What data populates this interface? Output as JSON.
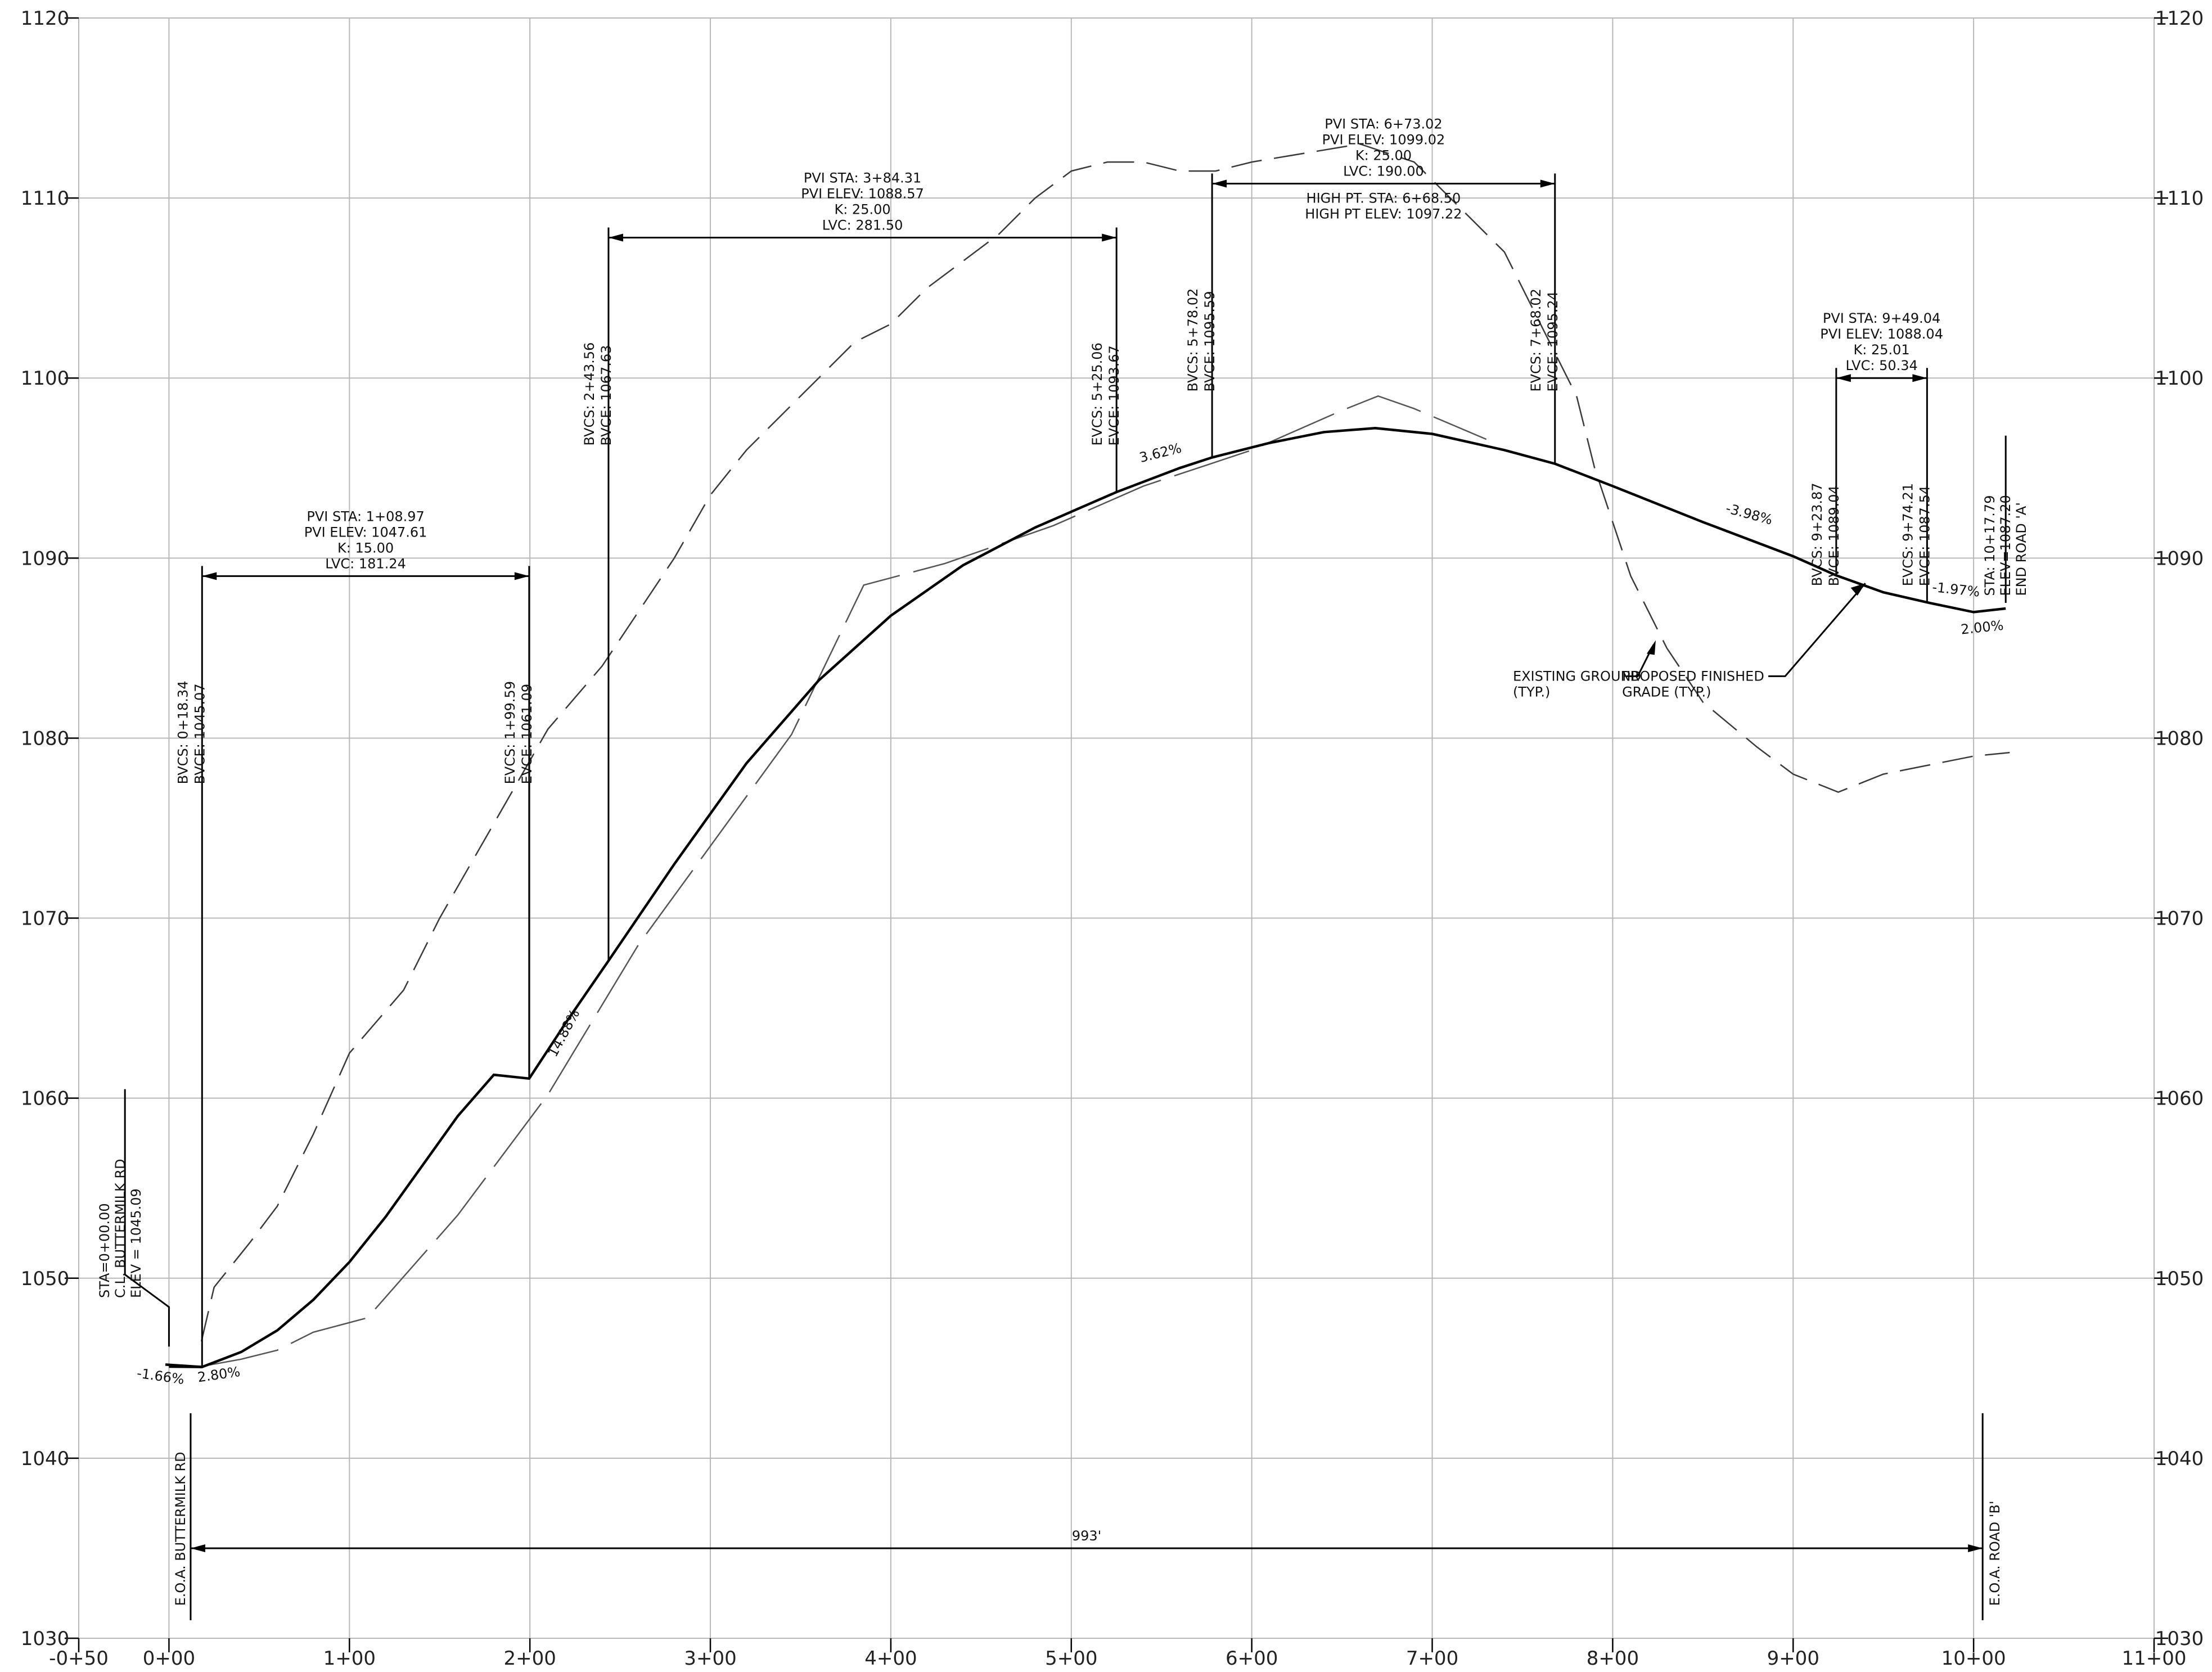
{
  "chart_data": {
    "type": "line",
    "xlim": [
      -50,
      1100
    ],
    "ylim": [
      1030,
      1120
    ],
    "y_ticks": [
      1030,
      1040,
      1050,
      1060,
      1070,
      1080,
      1090,
      1100,
      1110,
      1120
    ],
    "x_ticks": [
      {
        "sta": -50,
        "label": "-0+50"
      },
      {
        "sta": 0,
        "label": "0+00"
      },
      {
        "sta": 100,
        "label": "1+00"
      },
      {
        "sta": 200,
        "label": "2+00"
      },
      {
        "sta": 300,
        "label": "3+00"
      },
      {
        "sta": 400,
        "label": "4+00"
      },
      {
        "sta": 500,
        "label": "5+00"
      },
      {
        "sta": 600,
        "label": "6+00"
      },
      {
        "sta": 700,
        "label": "7+00"
      },
      {
        "sta": 800,
        "label": "8+00"
      },
      {
        "sta": 900,
        "label": "9+00"
      },
      {
        "sta": 1000,
        "label": "10+00"
      },
      {
        "sta": 1100,
        "label": "11+00"
      }
    ],
    "proposed_grade": [
      [
        0,
        1045.09
      ],
      [
        18.34,
        1045.07
      ],
      [
        40,
        1045.9
      ],
      [
        60,
        1047.1
      ],
      [
        80,
        1048.8
      ],
      [
        100,
        1050.9
      ],
      [
        120,
        1053.4
      ],
      [
        140,
        1056.2
      ],
      [
        160,
        1059.0
      ],
      [
        180,
        1061.3
      ],
      [
        199.59,
        1061.09
      ],
      [
        220,
        1064.2
      ],
      [
        243.56,
        1067.63
      ],
      [
        280,
        1073.0
      ],
      [
        320,
        1078.6
      ],
      [
        360,
        1083.2
      ],
      [
        400,
        1086.8
      ],
      [
        440,
        1089.6
      ],
      [
        480,
        1091.7
      ],
      [
        525.06,
        1093.67
      ],
      [
        560,
        1095.0
      ],
      [
        578.02,
        1095.59
      ],
      [
        610,
        1096.4
      ],
      [
        640,
        1097.0
      ],
      [
        668.5,
        1097.22
      ],
      [
        700,
        1096.9
      ],
      [
        740,
        1096.0
      ],
      [
        768.02,
        1095.24
      ],
      [
        800,
        1094.0
      ],
      [
        850,
        1092.0
      ],
      [
        900,
        1090.1
      ],
      [
        923.87,
        1089.04
      ],
      [
        950,
        1088.1
      ],
      [
        974.21,
        1087.54
      ],
      [
        1000,
        1087.0
      ],
      [
        1017.79,
        1087.2
      ]
    ],
    "existing_ground": [
      [
        18,
        1046.5
      ],
      [
        25,
        1049.5
      ],
      [
        45,
        1052.0
      ],
      [
        60,
        1054.0
      ],
      [
        80,
        1058.0
      ],
      [
        100,
        1062.5
      ],
      [
        130,
        1066.0
      ],
      [
        150,
        1070.0
      ],
      [
        170,
        1073.5
      ],
      [
        190,
        1077.0
      ],
      [
        210,
        1080.5
      ],
      [
        240,
        1084.0
      ],
      [
        260,
        1087.0
      ],
      [
        280,
        1090.0
      ],
      [
        300,
        1093.5
      ],
      [
        320,
        1096.0
      ],
      [
        340,
        1098.0
      ],
      [
        360,
        1100.0
      ],
      [
        380,
        1102.0
      ],
      [
        400,
        1103.0
      ],
      [
        420,
        1105.0
      ],
      [
        440,
        1106.5
      ],
      [
        460,
        1108.0
      ],
      [
        480,
        1110.0
      ],
      [
        500,
        1111.5
      ],
      [
        520,
        1112.0
      ],
      [
        540,
        1112.0
      ],
      [
        560,
        1111.5
      ],
      [
        580,
        1111.5
      ],
      [
        600,
        1112.0
      ],
      [
        630,
        1112.5
      ],
      [
        660,
        1113.0
      ],
      [
        690,
        1112.0
      ],
      [
        710,
        1110.0
      ],
      [
        740,
        1107.0
      ],
      [
        760,
        1103.0
      ],
      [
        780,
        1099.0
      ],
      [
        790,
        1095.0
      ],
      [
        800,
        1092.0
      ],
      [
        810,
        1089.0
      ],
      [
        830,
        1085.0
      ],
      [
        850,
        1082.0
      ],
      [
        880,
        1079.5
      ],
      [
        900,
        1078.0
      ],
      [
        925,
        1077.0
      ],
      [
        950,
        1078.0
      ],
      [
        975,
        1078.5
      ],
      [
        1000,
        1079.0
      ],
      [
        1020,
        1079.2
      ]
    ],
    "secondary_ground": [
      [
        18,
        1045.1
      ],
      [
        40,
        1045.5
      ],
      [
        60,
        1046.0
      ],
      [
        80,
        1047.0
      ],
      [
        110,
        1047.8
      ],
      [
        160,
        1053.5
      ],
      [
        210,
        1060.2
      ],
      [
        260,
        1068.5
      ],
      [
        300,
        1074.0
      ],
      [
        345,
        1080.2
      ],
      [
        385,
        1088.5
      ],
      [
        430,
        1089.7
      ],
      [
        490,
        1091.8
      ],
      [
        540,
        1094.0
      ],
      [
        600,
        1096.0
      ],
      [
        650,
        1098.2
      ],
      [
        670,
        1099.0
      ],
      [
        690,
        1098.3
      ],
      [
        730,
        1096.6
      ]
    ],
    "grade_labels": [
      {
        "text": "-1.66%",
        "sta": -5,
        "elev": 1044.3,
        "rot": 8
      },
      {
        "text": "2.80%",
        "sta": 28,
        "elev": 1044.4,
        "rot": -8
      },
      {
        "text": "14.88%",
        "sta": 221,
        "elev": 1063.5,
        "rot": -62
      },
      {
        "text": "3.62%",
        "sta": 550,
        "elev": 1095.6,
        "rot": -14
      },
      {
        "text": "-3.98%",
        "sta": 875,
        "elev": 1092.2,
        "rot": 15
      },
      {
        "text": "-1.97%",
        "sta": 990,
        "elev": 1088.0,
        "rot": 6
      },
      {
        "text": "2.00%",
        "sta": 1005,
        "elev": 1085.9,
        "rot": -6
      }
    ],
    "curves": [
      {
        "bvc_sta": 18.34,
        "evc_sta": 199.59,
        "dim_elev": 1089.0,
        "lines": [
          "PVI STA:  1+08.97",
          "PVI ELEV:  1047.61",
          "K:  15.00",
          "LVC:  181.24"
        ],
        "bvc_text": [
          "BVCS:  0+18.34",
          "BVCE:  1045.07"
        ],
        "evc_text": [
          "EVCS:  1+99.59",
          "EVCE:  1061.09"
        ],
        "bvc_elev": 1045.07,
        "evc_elev": 1061.09
      },
      {
        "bvc_sta": 243.56,
        "evc_sta": 525.06,
        "dim_elev": 1107.8,
        "lines": [
          "PVI STA:  3+84.31",
          "PVI ELEV:  1088.57",
          "K:  25.00",
          "LVC:  281.50"
        ],
        "bvc_text": [
          "BVCS:  2+43.56",
          "BVCE:  1067.63"
        ],
        "evc_text": [
          "EVCS:  5+25.06",
          "EVCE:  1093.67"
        ],
        "bvc_elev": 1067.63,
        "evc_elev": 1093.67
      },
      {
        "bvc_sta": 578.02,
        "evc_sta": 768.02,
        "dim_elev": 1110.8,
        "lines": [
          "PVI STA:  6+73.02",
          "PVI ELEV:  1099.02",
          "K:  25.00",
          "LVC:  190.00"
        ],
        "sub_lines": [
          "HIGH PT. STA:  6+68.50",
          "HIGH PT ELEV:  1097.22"
        ],
        "bvc_text": [
          "BVCS:  5+78.02",
          "BVCE:  1095.59"
        ],
        "evc_text": [
          "EVCS:  7+68.02",
          "EVCE:  1095.24"
        ],
        "bvc_elev": 1095.59,
        "evc_elev": 1095.24
      },
      {
        "bvc_sta": 923.87,
        "evc_sta": 974.21,
        "dim_elev": 1100.0,
        "lines": [
          "PVI STA:  9+49.04",
          "PVI ELEV:  1088.04",
          "K:  25.01",
          "LVC:  50.34"
        ],
        "bvc_text": [
          "BVCS:  9+23.87",
          "BVCE:  1089.04"
        ],
        "evc_text": [
          "EVCS:  9+74.21",
          "EVCE:  1087.54"
        ],
        "bvc_elev": 1089.04,
        "evc_elev": 1087.54
      }
    ],
    "start_note": [
      "STA=0+00.00",
      "C.L. BUTTERMILK RD",
      "ELEV =  1045.09"
    ],
    "end_note": [
      "STA: 10+17.79",
      "ELEV=1087.20",
      "END ROAD 'A'"
    ],
    "overall": {
      "label": "993'",
      "left_label": "E.O.A. BUTTERMILK RD",
      "right_label": "E.O.A. ROAD 'B'",
      "left_sta": 12,
      "right_sta": 1005,
      "dim_elev": 1035.0
    },
    "callouts": [
      {
        "lines": [
          "EXISTING GROUND",
          "(TYP.)"
        ]
      },
      {
        "lines": [
          "PROPOSED FINISHED",
          "GRADE (TYP.)"
        ]
      }
    ]
  }
}
